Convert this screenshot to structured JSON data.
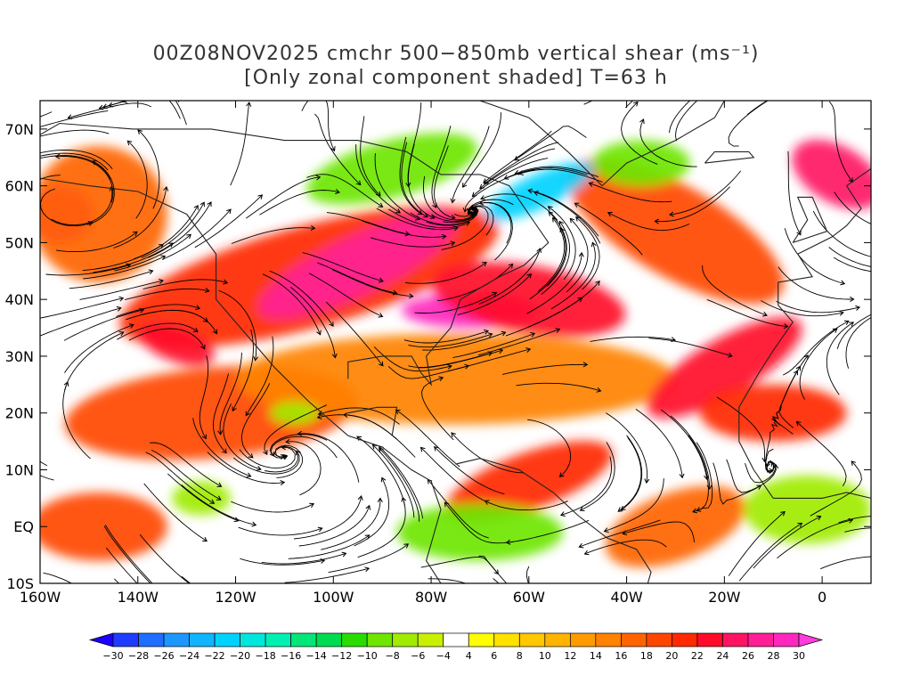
{
  "title": {
    "line1": "00Z08NOV2025 cmchr 500−850mb vertical shear (ms⁻¹)",
    "line2": "[Only zonal component shaded] T=63 h"
  },
  "map": {
    "lon_range": [
      -160,
      10
    ],
    "lat_range": [
      -10,
      75
    ],
    "lon_ticks": [
      {
        "lon": -160,
        "label": "160W"
      },
      {
        "lon": -140,
        "label": "140W"
      },
      {
        "lon": -120,
        "label": "120W"
      },
      {
        "lon": -100,
        "label": "100W"
      },
      {
        "lon": -80,
        "label": "80W"
      },
      {
        "lon": -60,
        "label": "60W"
      },
      {
        "lon": -40,
        "label": "40W"
      },
      {
        "lon": -20,
        "label": "20W"
      },
      {
        "lon": 0,
        "label": "0"
      }
    ],
    "lat_ticks": [
      {
        "lat": 70,
        "label": "70N"
      },
      {
        "lat": 60,
        "label": "60N"
      },
      {
        "lat": 50,
        "label": "50N"
      },
      {
        "lat": 40,
        "label": "40N"
      },
      {
        "lat": 30,
        "label": "30N"
      },
      {
        "lat": 20,
        "label": "20N"
      },
      {
        "lat": 10,
        "label": "10N"
      },
      {
        "lat": 0,
        "label": "EQ"
      },
      {
        "lat": -10,
        "label": "10S"
      }
    ]
  },
  "colorbar": {
    "levels": [
      -30,
      -28,
      -26,
      -24,
      -22,
      -20,
      -18,
      -16,
      -14,
      -12,
      -10,
      -8,
      -6,
      -4,
      4,
      6,
      8,
      10,
      12,
      14,
      16,
      18,
      20,
      22,
      24,
      26,
      28,
      30
    ],
    "colors": [
      "#1e00ff",
      "#1e3cff",
      "#1e6eff",
      "#1e96ff",
      "#10b4ff",
      "#00d2ff",
      "#00e6dc",
      "#00f0b4",
      "#00e678",
      "#00dc50",
      "#28dc00",
      "#6ee600",
      "#a0eb00",
      "#c8f000",
      "#ffffff",
      "#ffff00",
      "#ffe100",
      "#ffc800",
      "#ffb400",
      "#ff9b00",
      "#ff8200",
      "#ff6400",
      "#ff4600",
      "#ff2800",
      "#ff0a28",
      "#ff1464",
      "#ff1e96",
      "#ff28be",
      "#ff3cdc"
    ]
  },
  "shaded_regions": [
    {
      "value": 20,
      "lon": -105,
      "lat": 44,
      "rx": 40,
      "ry": 9,
      "rot": -15
    },
    {
      "value": 26,
      "lon": -95,
      "lat": 46,
      "rx": 22,
      "ry": 5,
      "rot": -25
    },
    {
      "value": 28,
      "lon": -72,
      "lat": 38,
      "rx": 14,
      "ry": 3,
      "rot": 0
    },
    {
      "value": 22,
      "lon": -60,
      "lat": 40,
      "rx": 20,
      "ry": 6,
      "rot": 10
    },
    {
      "value": 18,
      "lon": -30,
      "lat": 52,
      "rx": 25,
      "ry": 8,
      "rot": 30
    },
    {
      "value": 24,
      "lon": 3,
      "lat": 62,
      "rx": 10,
      "ry": 5,
      "rot": 30
    },
    {
      "value": 24,
      "lon": -156,
      "lat": 55,
      "rx": 7,
      "ry": 5,
      "rot": 0
    },
    {
      "value": 16,
      "lon": -148,
      "lat": 55,
      "rx": 14,
      "ry": 12,
      "rot": 0
    },
    {
      "value": 22,
      "lon": -132,
      "lat": 32,
      "rx": 8,
      "ry": 3,
      "rot": 20
    },
    {
      "value": 18,
      "lon": -125,
      "lat": 20,
      "rx": 30,
      "ry": 8,
      "rot": -5
    },
    {
      "value": 14,
      "lon": -75,
      "lat": 26,
      "rx": 45,
      "ry": 8,
      "rot": 0
    },
    {
      "value": 22,
      "lon": -20,
      "lat": 28,
      "rx": 18,
      "ry": 5,
      "rot": -30
    },
    {
      "value": 20,
      "lon": -10,
      "lat": 20,
      "rx": 15,
      "ry": 5,
      "rot": 0
    },
    {
      "value": 18,
      "lon": -148,
      "lat": 0,
      "rx": 14,
      "ry": 6,
      "rot": 0
    },
    {
      "value": 20,
      "lon": -60,
      "lat": 8,
      "rx": 18,
      "ry": 5,
      "rot": -20
    },
    {
      "value": 16,
      "lon": -30,
      "lat": 0,
      "rx": 15,
      "ry": 6,
      "rot": -20
    },
    {
      "value": -10,
      "lon": -88,
      "lat": 63,
      "rx": 18,
      "ry": 5,
      "rot": -15
    },
    {
      "value": -22,
      "lon": -58,
      "lat": 59,
      "rx": 12,
      "ry": 3,
      "rot": -25
    },
    {
      "value": -10,
      "lon": -37,
      "lat": 64,
      "rx": 10,
      "ry": 4,
      "rot": 0
    },
    {
      "value": -10,
      "lon": -70,
      "lat": -1,
      "rx": 17,
      "ry": 5,
      "rot": 0
    },
    {
      "value": -8,
      "lon": -3,
      "lat": 3,
      "rx": 13,
      "ry": 6,
      "rot": 0
    },
    {
      "value": -8,
      "lon": -127,
      "lat": 5,
      "rx": 6,
      "ry": 3,
      "rot": 0
    },
    {
      "value": -8,
      "lon": -108,
      "lat": 20,
      "rx": 5,
      "ry": 2,
      "rot": 0
    }
  ]
}
